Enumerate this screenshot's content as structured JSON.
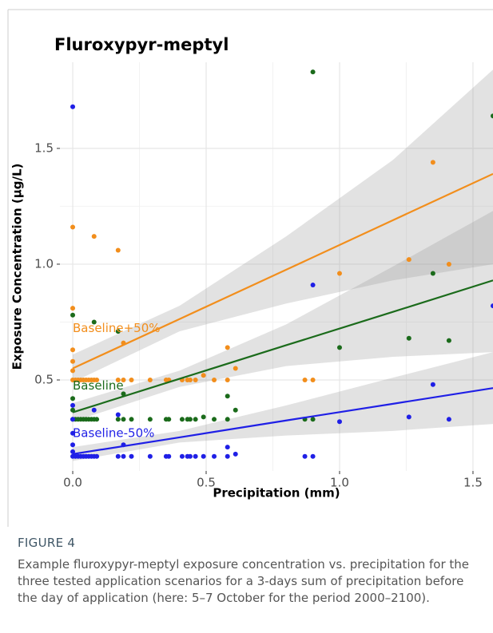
{
  "chart_data": {
    "type": "scatter",
    "title": "Fluroxypyr-meptyl",
    "x_label": "Precipitation (mm)",
    "y_label": "Exposure Concentration (μg/L)",
    "xlim": [
      -0.048,
      1.575
    ],
    "ylim": [
      0.107,
      1.872
    ],
    "xticks": [
      {
        "value": 0,
        "label": "0.0"
      },
      {
        "value": 0.5,
        "label": "0.5"
      },
      {
        "value": 1,
        "label": "1.0"
      },
      {
        "value": 1.5,
        "label": "1.5"
      }
    ],
    "yticks": [
      {
        "value": 0.5,
        "label": "0.5"
      },
      {
        "value": 1,
        "label": "1.0"
      },
      {
        "value": 1.5,
        "label": "1.5"
      }
    ],
    "grid": true,
    "series": [
      {
        "name": "Baseline+50%",
        "color": "#f28e1c",
        "x": [
          0,
          0,
          0,
          0,
          0,
          0,
          0.01,
          0.02,
          0.03,
          0.04,
          0.05,
          0.06,
          0.07,
          0.08,
          0.09,
          0.08,
          0.17,
          0.17,
          0.19,
          0.19,
          0.22,
          0.29,
          0.35,
          0.36,
          0.41,
          0.43,
          0.44,
          0.46,
          0.49,
          0.53,
          0.58,
          0.58,
          0.61,
          0.87,
          0.9,
          1.0,
          1.26,
          1.35,
          1.41
        ],
        "y": [
          1.16,
          0.81,
          0.63,
          0.58,
          0.54,
          0.5,
          0.5,
          0.5,
          0.5,
          0.5,
          0.5,
          0.5,
          0.5,
          0.5,
          0.5,
          1.12,
          1.06,
          0.5,
          0.66,
          0.5,
          0.5,
          0.5,
          0.5,
          0.5,
          0.5,
          0.5,
          0.5,
          0.5,
          0.52,
          0.5,
          0.64,
          0.5,
          0.55,
          0.5,
          0.5,
          0.96,
          1.02,
          1.44,
          1.0
        ],
        "fit": {
          "x": [
            0,
            0.4,
            0.8,
            1.2,
            1.575
          ],
          "y": [
            0.55,
            0.763,
            0.976,
            1.19,
            1.39
          ],
          "lower": [
            0.49,
            0.71,
            0.83,
            0.93,
            1.0
          ],
          "upper": [
            0.61,
            0.82,
            1.12,
            1.45,
            1.84
          ]
        }
      },
      {
        "name": "Baseline",
        "color": "#1b6b1b",
        "x": [
          0,
          0,
          0,
          0,
          0.01,
          0.02,
          0.03,
          0.04,
          0.05,
          0.06,
          0.07,
          0.08,
          0.09,
          0.08,
          0.17,
          0.17,
          0.19,
          0.19,
          0.22,
          0.29,
          0.35,
          0.36,
          0.41,
          0.43,
          0.44,
          0.46,
          0.49,
          0.53,
          0.58,
          0.58,
          0.61,
          0.87,
          0.9,
          0.9,
          1.0,
          1.26,
          1.35,
          1.41,
          1.575
        ],
        "y": [
          0.78,
          0.42,
          0.37,
          0.33,
          0.33,
          0.33,
          0.33,
          0.33,
          0.33,
          0.33,
          0.33,
          0.33,
          0.33,
          0.75,
          0.71,
          0.33,
          0.44,
          0.33,
          0.33,
          0.33,
          0.33,
          0.33,
          0.33,
          0.33,
          0.33,
          0.33,
          0.34,
          0.33,
          0.43,
          0.33,
          0.37,
          0.33,
          0.33,
          1.83,
          0.64,
          0.68,
          0.96,
          0.67,
          1.64
        ],
        "fit": {
          "x": [
            0,
            0.4,
            0.8,
            1.2,
            1.575
          ],
          "y": [
            0.36,
            0.505,
            0.65,
            0.794,
            0.93
          ],
          "lower": [
            0.32,
            0.47,
            0.56,
            0.6,
            0.62
          ],
          "upper": [
            0.4,
            0.54,
            0.74,
            0.99,
            1.23
          ]
        }
      },
      {
        "name": "Baseline-50%",
        "color": "#1f1fe6",
        "x": [
          0,
          0,
          0,
          0,
          0,
          0,
          0,
          0.01,
          0.02,
          0.03,
          0.04,
          0.05,
          0.06,
          0.07,
          0.08,
          0.09,
          0.08,
          0.17,
          0.17,
          0.19,
          0.19,
          0.22,
          0.29,
          0.35,
          0.36,
          0.41,
          0.43,
          0.44,
          0.46,
          0.49,
          0.53,
          0.58,
          0.58,
          0.61,
          0.87,
          0.9,
          0.9,
          1.0,
          1.26,
          1.35,
          1.41,
          1.575
        ],
        "y": [
          1.68,
          0.39,
          0.33,
          0.27,
          0.22,
          0.19,
          0.17,
          0.17,
          0.17,
          0.17,
          0.17,
          0.17,
          0.17,
          0.17,
          0.17,
          0.17,
          0.37,
          0.17,
          0.35,
          0.17,
          0.22,
          0.17,
          0.17,
          0.17,
          0.17,
          0.17,
          0.17,
          0.17,
          0.17,
          0.17,
          0.17,
          0.21,
          0.17,
          0.18,
          0.17,
          0.17,
          0.91,
          0.32,
          0.34,
          0.48,
          0.33,
          0.82
        ],
        "fit": {
          "x": [
            0,
            0.4,
            0.8,
            1.2,
            1.575
          ],
          "y": [
            0.18,
            0.252,
            0.325,
            0.397,
            0.465
          ],
          "lower": [
            0.15,
            0.23,
            0.26,
            0.28,
            0.31
          ],
          "upper": [
            0.21,
            0.28,
            0.39,
            0.51,
            0.62
          ]
        }
      }
    ]
  },
  "caption": {
    "label": "FIGURE 4",
    "text": "Example fluroxypyr-meptyl exposure concentration vs. precipitation for the three tested application scenarios for a 3-days sum of precipitation before the day of application (here: 5–7 October for the period 2000–2100)."
  }
}
